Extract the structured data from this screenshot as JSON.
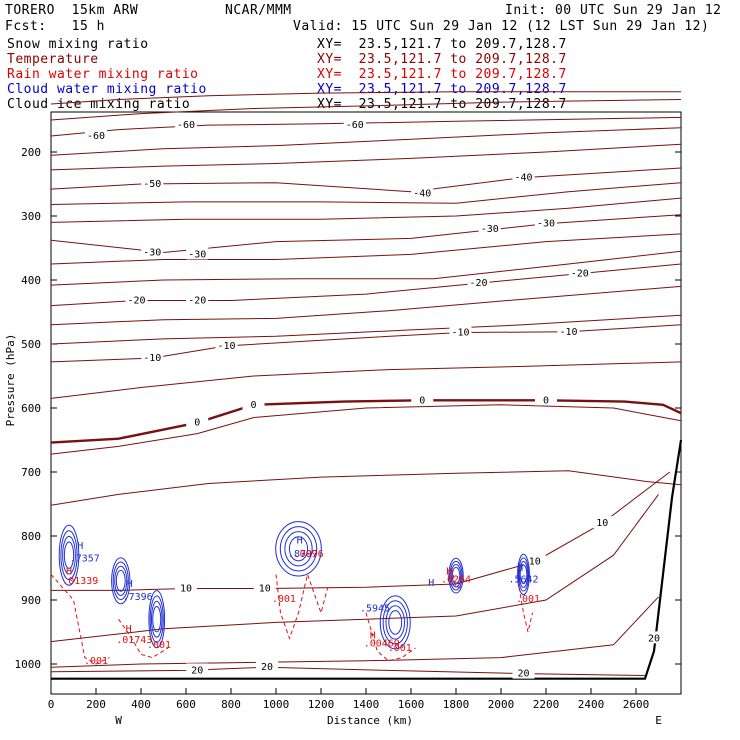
{
  "header": {
    "model": "TORERO  15km ARW",
    "org": "NCAR/MMM",
    "init": "Init: 00 UTC Sun 29 Jan 12",
    "fcst": "Fcst:   15 h",
    "valid": "Valid: 15 UTC Sun 29 Jan 12 (12 LST Sun 29 Jan 12)"
  },
  "legend": [
    {
      "label": "Snow mixing ratio",
      "xy": "",
      "color": "#000000"
    },
    {
      "label": "Temperature",
      "xy": "XY=  23.5,121.7 to 209.7,128.7",
      "color": "#8b0000"
    },
    {
      "label": "Rain water mixing ratio",
      "xy": "XY=  23.5,121.7 to 209.7,128.7",
      "color": "#ff0000"
    },
    {
      "label": "Cloud water mixing ratio",
      "xy": "XY=  23.5,121.7 to 209.7,128.7",
      "color": "#0000cc"
    },
    {
      "label": "Cloud ice mixing ratio",
      "xy": "XY=  23.5,121.7 to 209.7,128.7",
      "color": "#000000"
    }
  ],
  "legend_first_xy": "XY=  23.5,121.7 to 209.7,128.7",
  "chart_data": {
    "type": "contour-cross-section",
    "xlabel": "Distance (km)",
    "ylabel": "Pressure (hPa)",
    "xlim": [
      0,
      2800
    ],
    "ylim": [
      1050,
      100
    ],
    "x_ticks": [
      0,
      200,
      400,
      600,
      800,
      1000,
      1200,
      1400,
      1600,
      1800,
      2000,
      2200,
      2400,
      2600
    ],
    "x_tick_labels": [
      "0",
      "200",
      "400",
      "600",
      "800",
      "1000",
      "1200",
      "1400",
      "1600",
      "1800",
      "2000",
      "2200",
      "2400",
      "2600"
    ],
    "y_ticks": [
      200,
      300,
      400,
      500,
      600,
      700,
      800,
      900,
      1000
    ],
    "y_tick_labels": [
      "200",
      "300",
      "400",
      "500",
      "600",
      "700",
      "800",
      "900",
      "1000"
    ],
    "x_end_labels": {
      "left": "W",
      "right": "E"
    },
    "temperature_labels": [
      {
        "x": 200,
        "p": 175,
        "text": "-60"
      },
      {
        "x": 600,
        "p": 158,
        "text": "-60"
      },
      {
        "x": 1350,
        "p": 158,
        "text": "-60"
      },
      {
        "x": 450,
        "p": 250,
        "text": "-50"
      },
      {
        "x": 1650,
        "p": 265,
        "text": "-40"
      },
      {
        "x": 2100,
        "p": 240,
        "text": "-40"
      },
      {
        "x": 450,
        "p": 357,
        "text": "-30"
      },
      {
        "x": 650,
        "p": 360,
        "text": "-30"
      },
      {
        "x": 1950,
        "p": 320,
        "text": "-30"
      },
      {
        "x": 2200,
        "p": 312,
        "text": "-30"
      },
      {
        "x": 380,
        "p": 432,
        "text": "-20"
      },
      {
        "x": 650,
        "p": 432,
        "text": "-20"
      },
      {
        "x": 1900,
        "p": 405,
        "text": "-20"
      },
      {
        "x": 2350,
        "p": 390,
        "text": "-20"
      },
      {
        "x": 450,
        "p": 522,
        "text": "-10"
      },
      {
        "x": 780,
        "p": 503,
        "text": "-10"
      },
      {
        "x": 1820,
        "p": 482,
        "text": "-10"
      },
      {
        "x": 2300,
        "p": 481,
        "text": "-10"
      },
      {
        "x": 650,
        "p": 623,
        "text": "0"
      },
      {
        "x": 900,
        "p": 595,
        "text": "0"
      },
      {
        "x": 1650,
        "p": 588,
        "text": "0"
      },
      {
        "x": 2200,
        "p": 588,
        "text": "0"
      },
      {
        "x": 2450,
        "p": 780,
        "text": "10"
      },
      {
        "x": 2150,
        "p": 840,
        "text": "10"
      },
      {
        "x": 600,
        "p": 882,
        "text": "10"
      },
      {
        "x": 950,
        "p": 882,
        "text": "10"
      },
      {
        "x": 650,
        "p": 1010,
        "text": "20"
      },
      {
        "x": 960,
        "p": 1005,
        "text": "20"
      },
      {
        "x": 2100,
        "p": 1015,
        "text": "20"
      },
      {
        "x": 2680,
        "p": 960,
        "text": "20"
      }
    ],
    "cloud_water_labels": [
      {
        "x": 130,
        "p": 820,
        "text": "H"
      },
      {
        "x": 150,
        "p": 840,
        "text": ".7357"
      },
      {
        "x": 350,
        "p": 880,
        "text": "H"
      },
      {
        "x": 385,
        "p": 900,
        "text": ".7396"
      },
      {
        "x": 1105,
        "p": 812,
        "text": "H"
      },
      {
        "x": 1120,
        "p": 833,
        "text": ".8797"
      },
      {
        "x": 1440,
        "p": 918,
        "text": ".5945"
      },
      {
        "x": 1690,
        "p": 878,
        "text": "H"
      },
      {
        "x": 2085,
        "p": 855,
        "text": "H"
      },
      {
        "x": 2100,
        "p": 873,
        "text": ".5642"
      }
    ],
    "rain_labels": [
      {
        "x": 80,
        "p": 860,
        "text": "H"
      },
      {
        "x": 130,
        "p": 875,
        "text": ".01339"
      },
      {
        "x": 345,
        "p": 950,
        "text": "H"
      },
      {
        "x": 370,
        "p": 967,
        "text": ".01743"
      },
      {
        "x": 480,
        "p": 975,
        "text": ".001"
      },
      {
        "x": 1035,
        "p": 903,
        "text": ".001"
      },
      {
        "x": 1145,
        "p": 833,
        "text": ".0096"
      },
      {
        "x": 1430,
        "p": 960,
        "text": "H"
      },
      {
        "x": 1470,
        "p": 973,
        "text": ".00469"
      },
      {
        "x": 1550,
        "p": 980,
        "text": ".001"
      },
      {
        "x": 1800,
        "p": 873,
        "text": ".0264"
      },
      {
        "x": 1770,
        "p": 860,
        "text": "H"
      },
      {
        "x": 2120,
        "p": 903,
        "text": ".001"
      },
      {
        "x": 200,
        "p": 1000,
        "text": ".001"
      }
    ]
  }
}
